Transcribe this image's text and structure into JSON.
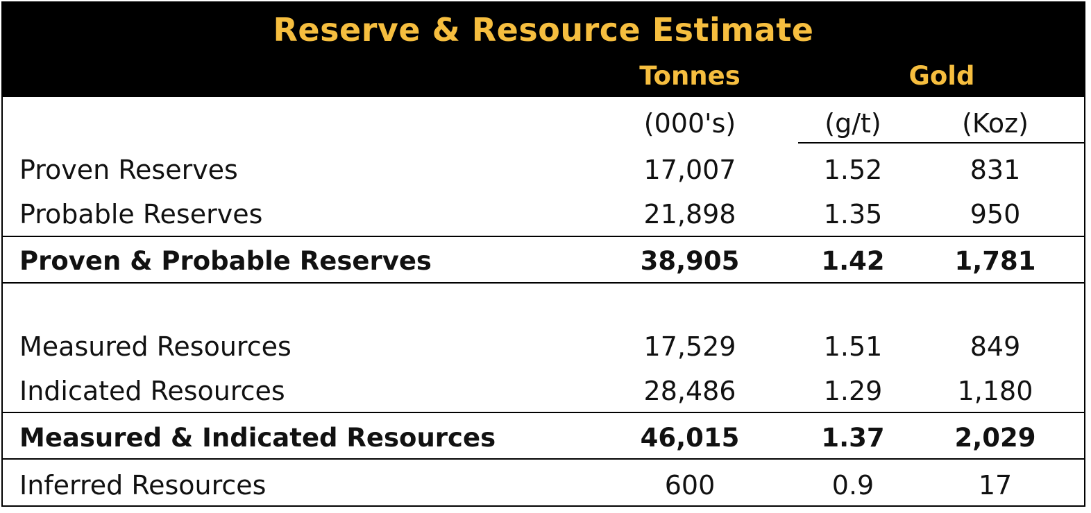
{
  "table": {
    "title": "Reserve & Resource Estimate",
    "col_headers": {
      "tonnes": "Tonnes",
      "gold": "Gold"
    },
    "units": {
      "tonnes": "(000's)",
      "grade": "(g/t)",
      "ounces": "(Koz)"
    },
    "rows": [
      {
        "label": "Proven Reserves",
        "tonnes": "17,007",
        "grade": "1.52",
        "ounces": "831"
      },
      {
        "label": "Probable Reserves",
        "tonnes": "21,898",
        "grade": "1.35",
        "ounces": "950"
      },
      {
        "label": "Proven & Probable Reserves",
        "tonnes": "38,905",
        "grade": "1.42",
        "ounces": "1,781"
      },
      {
        "label": "Measured Resources",
        "tonnes": "17,529",
        "grade": "1.51",
        "ounces": "849"
      },
      {
        "label": "Indicated Resources",
        "tonnes": "28,486",
        "grade": "1.29",
        "ounces": "1,180"
      },
      {
        "label": "Measured & Indicated Resources",
        "tonnes": "46,015",
        "grade": "1.37",
        "ounces": "2,029"
      },
      {
        "label": "Inferred Resources",
        "tonnes": "600",
        "grade": "0.9",
        "ounces": "17"
      }
    ]
  },
  "colors": {
    "header_bg": "#000000",
    "header_text": "#F6BE3F",
    "body_text": "#111111"
  }
}
